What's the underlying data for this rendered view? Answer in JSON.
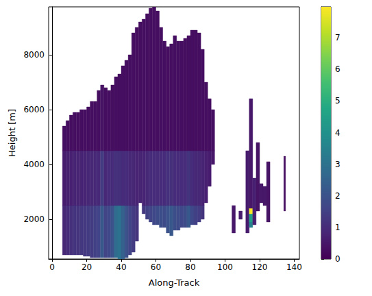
{
  "chart_data": {
    "type": "heatmap",
    "x_label": "Along-Track",
    "y_label": "Height [m]",
    "xlim": [
      -2,
      143
    ],
    "ylim": [
      550,
      9750
    ],
    "xticks": [
      0,
      20,
      40,
      60,
      80,
      100,
      120,
      140
    ],
    "yticks": [
      2000,
      4000,
      6000,
      8000
    ],
    "grid": false,
    "colorbar": {
      "range": [
        0,
        7.98
      ],
      "ticks": [
        0,
        1,
        2,
        3,
        4,
        5,
        6,
        7
      ]
    },
    "cells": [
      [
        6,
        8,
        700,
        2500,
        0.9
      ],
      [
        6,
        8,
        2500,
        4500,
        0.6
      ],
      [
        6,
        8,
        4500,
        5400,
        0.3
      ],
      [
        8,
        10,
        700,
        2500,
        1.0
      ],
      [
        8,
        10,
        2500,
        4500,
        0.7
      ],
      [
        8,
        10,
        4500,
        5600,
        0.3
      ],
      [
        10,
        12,
        700,
        2500,
        1.1
      ],
      [
        10,
        12,
        2500,
        4500,
        0.7
      ],
      [
        10,
        12,
        4500,
        5800,
        0.3
      ],
      [
        12,
        14,
        700,
        2500,
        1.2
      ],
      [
        12,
        14,
        2500,
        4500,
        0.8
      ],
      [
        12,
        14,
        4500,
        5900,
        0.3
      ],
      [
        14,
        16,
        700,
        2500,
        1.2
      ],
      [
        14,
        16,
        2500,
        4500,
        0.8
      ],
      [
        14,
        16,
        4500,
        5900,
        0.3
      ],
      [
        16,
        18,
        700,
        2500,
        1.3
      ],
      [
        16,
        18,
        2500,
        4500,
        0.8
      ],
      [
        16,
        18,
        4500,
        6000,
        0.3
      ],
      [
        18,
        20,
        650,
        2500,
        1.3
      ],
      [
        18,
        20,
        2500,
        4500,
        0.8
      ],
      [
        18,
        20,
        4500,
        6000,
        0.3
      ],
      [
        20,
        22,
        650,
        2500,
        1.4
      ],
      [
        20,
        22,
        2500,
        4500,
        0.9
      ],
      [
        20,
        22,
        4500,
        6100,
        0.3
      ],
      [
        22,
        24,
        600,
        2500,
        1.4
      ],
      [
        22,
        24,
        2500,
        4500,
        0.9
      ],
      [
        22,
        24,
        4500,
        6300,
        0.3
      ],
      [
        24,
        26,
        600,
        2500,
        1.5
      ],
      [
        24,
        26,
        2500,
        4500,
        0.9
      ],
      [
        24,
        26,
        4500,
        6300,
        0.3
      ],
      [
        26,
        28,
        600,
        2500,
        1.6
      ],
      [
        26,
        28,
        2500,
        4500,
        0.9
      ],
      [
        26,
        28,
        4500,
        6700,
        0.3
      ],
      [
        28,
        30,
        600,
        2500,
        2.2
      ],
      [
        28,
        30,
        2500,
        4500,
        1.4
      ],
      [
        28,
        30,
        4500,
        6900,
        0.4
      ],
      [
        30,
        32,
        600,
        2500,
        1.6
      ],
      [
        30,
        32,
        2500,
        4500,
        0.9
      ],
      [
        30,
        32,
        4500,
        6800,
        0.3
      ],
      [
        32,
        34,
        600,
        2500,
        1.7
      ],
      [
        32,
        34,
        2500,
        4500,
        1.0
      ],
      [
        32,
        34,
        4500,
        6700,
        0.3
      ],
      [
        34,
        36,
        600,
        2500,
        2.0
      ],
      [
        34,
        36,
        2500,
        4500,
        1.0
      ],
      [
        34,
        36,
        4500,
        6900,
        0.3
      ],
      [
        36,
        38,
        600,
        2500,
        2.8
      ],
      [
        36,
        38,
        2500,
        4500,
        1.1
      ],
      [
        36,
        38,
        4500,
        7200,
        0.3
      ],
      [
        38,
        40,
        550,
        2500,
        3.0
      ],
      [
        38,
        40,
        2500,
        4500,
        1.1
      ],
      [
        38,
        40,
        4500,
        7300,
        0.3
      ],
      [
        40,
        42,
        550,
        2500,
        2.5
      ],
      [
        40,
        42,
        2500,
        4500,
        1.0
      ],
      [
        40,
        42,
        4500,
        7600,
        0.3
      ],
      [
        42,
        44,
        600,
        2500,
        2.0
      ],
      [
        42,
        44,
        2500,
        4500,
        1.0
      ],
      [
        42,
        44,
        4500,
        7800,
        0.3
      ],
      [
        44,
        46,
        700,
        2500,
        1.6
      ],
      [
        44,
        46,
        2500,
        4500,
        0.9
      ],
      [
        44,
        46,
        4500,
        8000,
        0.3
      ],
      [
        46,
        48,
        800,
        2500,
        1.4
      ],
      [
        46,
        48,
        2500,
        4500,
        0.9
      ],
      [
        46,
        48,
        4500,
        8800,
        0.3
      ],
      [
        48,
        50,
        1200,
        2500,
        1.2
      ],
      [
        48,
        50,
        2500,
        4500,
        0.8
      ],
      [
        48,
        50,
        4500,
        9000,
        0.3
      ],
      [
        50,
        52,
        2600,
        4500,
        0.8
      ],
      [
        50,
        52,
        4500,
        9200,
        0.3
      ],
      [
        52,
        54,
        2200,
        2500,
        1.3
      ],
      [
        52,
        54,
        2500,
        4500,
        0.8
      ],
      [
        52,
        54,
        4500,
        9300,
        0.3
      ],
      [
        54,
        56,
        2000,
        2500,
        1.5
      ],
      [
        54,
        56,
        2500,
        4500,
        0.9
      ],
      [
        54,
        56,
        4500,
        9500,
        0.3
      ],
      [
        56,
        58,
        1900,
        2500,
        1.6
      ],
      [
        56,
        58,
        2500,
        4500,
        1.0
      ],
      [
        56,
        58,
        4500,
        9700,
        0.3
      ],
      [
        58,
        60,
        1800,
        2500,
        1.7
      ],
      [
        58,
        60,
        2500,
        4500,
        1.0
      ],
      [
        58,
        60,
        4500,
        9750,
        0.3
      ],
      [
        60,
        62,
        1800,
        2500,
        1.8
      ],
      [
        60,
        62,
        2500,
        4500,
        1.0
      ],
      [
        60,
        62,
        4500,
        9600,
        0.3
      ],
      [
        62,
        64,
        1700,
        2500,
        1.9
      ],
      [
        62,
        64,
        2500,
        4500,
        1.0
      ],
      [
        62,
        64,
        4500,
        9000,
        0.3
      ],
      [
        64,
        66,
        1700,
        2500,
        1.8
      ],
      [
        64,
        66,
        2500,
        4500,
        1.0
      ],
      [
        64,
        66,
        4500,
        8500,
        0.3
      ],
      [
        66,
        68,
        1500,
        2500,
        2.0
      ],
      [
        66,
        68,
        2500,
        4500,
        1.1
      ],
      [
        66,
        68,
        4500,
        8300,
        0.3
      ],
      [
        68,
        70,
        1400,
        2500,
        2.2
      ],
      [
        68,
        70,
        2500,
        4500,
        1.1
      ],
      [
        68,
        70,
        4500,
        8400,
        0.3
      ],
      [
        70,
        72,
        1600,
        2500,
        1.9
      ],
      [
        70,
        72,
        2500,
        4500,
        1.0
      ],
      [
        70,
        72,
        4500,
        8700,
        0.3
      ],
      [
        72,
        74,
        1600,
        2500,
        1.8
      ],
      [
        72,
        74,
        2500,
        4500,
        1.0
      ],
      [
        72,
        74,
        4500,
        8500,
        0.3
      ],
      [
        74,
        76,
        1700,
        2500,
        1.7
      ],
      [
        74,
        76,
        2500,
        4500,
        1.0
      ],
      [
        74,
        76,
        4500,
        8500,
        0.3
      ],
      [
        76,
        78,
        1700,
        2500,
        1.8
      ],
      [
        76,
        78,
        2500,
        4500,
        1.0
      ],
      [
        76,
        78,
        4500,
        8600,
        0.3
      ],
      [
        78,
        80,
        1700,
        2500,
        2.2
      ],
      [
        78,
        80,
        2500,
        4500,
        1.2
      ],
      [
        78,
        80,
        4500,
        8700,
        0.3
      ],
      [
        80,
        82,
        1800,
        2500,
        1.7
      ],
      [
        80,
        82,
        2500,
        4500,
        1.0
      ],
      [
        80,
        82,
        4500,
        8900,
        0.3
      ],
      [
        82,
        84,
        1800,
        2500,
        1.5
      ],
      [
        82,
        84,
        2500,
        4500,
        0.9
      ],
      [
        82,
        84,
        4500,
        8900,
        0.3
      ],
      [
        84,
        86,
        1900,
        2500,
        1.4
      ],
      [
        84,
        86,
        2500,
        4500,
        0.9
      ],
      [
        84,
        86,
        4500,
        8800,
        0.3
      ],
      [
        86,
        88,
        2000,
        2500,
        1.2
      ],
      [
        86,
        88,
        2500,
        4500,
        0.8
      ],
      [
        86,
        88,
        4500,
        8200,
        0.3
      ],
      [
        88,
        90,
        2600,
        4500,
        0.7
      ],
      [
        88,
        90,
        4500,
        7000,
        0.3
      ],
      [
        90,
        92,
        3200,
        4500,
        0.6
      ],
      [
        90,
        92,
        4500,
        6400,
        0.3
      ],
      [
        92,
        94,
        4000,
        4500,
        0.5
      ],
      [
        92,
        94,
        4500,
        6000,
        0.3
      ],
      [
        104,
        106,
        1500,
        2500,
        0.5
      ],
      [
        108,
        110,
        2000,
        2300,
        0.6
      ],
      [
        112,
        114,
        1500,
        4500,
        0.6
      ],
      [
        114,
        116,
        1700,
        1900,
        3.5
      ],
      [
        114,
        116,
        1900,
        2200,
        4.5
      ],
      [
        114,
        116,
        2200,
        2400,
        7.9
      ],
      [
        114,
        116,
        2400,
        6400,
        0.5
      ],
      [
        116,
        118,
        1800,
        3500,
        0.7
      ],
      [
        118,
        120,
        2300,
        4800,
        0.4
      ],
      [
        120,
        122,
        2600,
        3300,
        0.5
      ],
      [
        122,
        124,
        2500,
        3200,
        0.5
      ],
      [
        124,
        126,
        1900,
        4100,
        0.4
      ],
      [
        134,
        135,
        2300,
        4300,
        0.3
      ]
    ]
  }
}
